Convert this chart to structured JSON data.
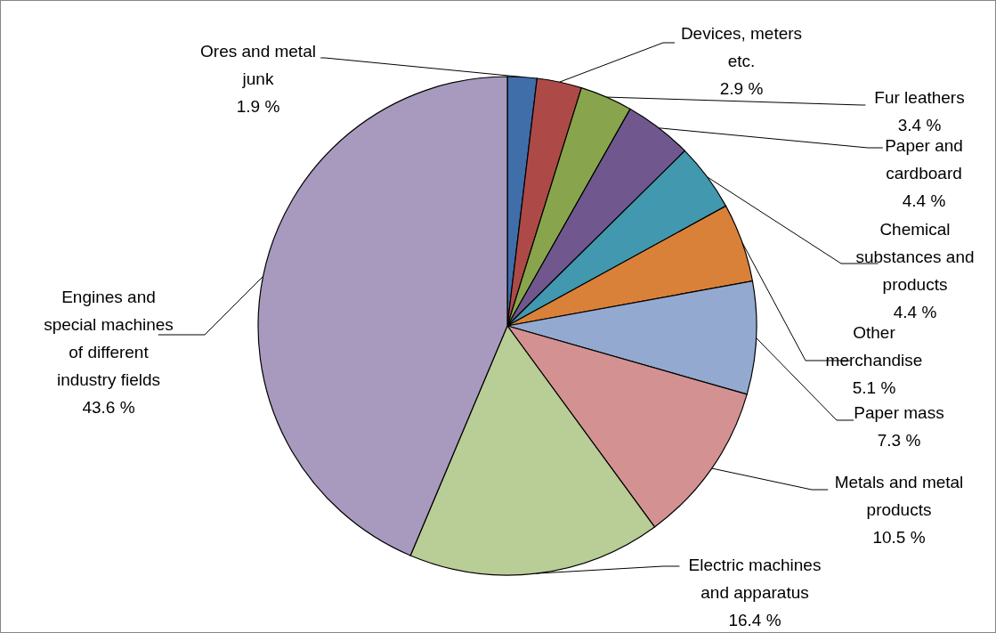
{
  "chart_data": {
    "type": "pie",
    "categories": [
      "Ores and metal junk",
      "Devices, meters etc.",
      "Fur leathers",
      "Paper and cardboard",
      "Chemical substances and products",
      "Other merchandise",
      "Paper mass",
      "Metals and metal products",
      "Electric machines and apparatus",
      "Engines and special machines of different industry fields"
    ],
    "values": [
      1.9,
      2.9,
      3.4,
      4.4,
      4.4,
      5.1,
      7.3,
      10.5,
      16.4,
      43.6
    ],
    "value_labels": [
      "1.9 %",
      "2.9 %",
      "3.4 %",
      "4.4 %",
      "4.4 %",
      "5.1 %",
      "7.3 %",
      "10.5 %",
      "16.4 %",
      "43.6 %"
    ],
    "colors": [
      "#3f6ea9",
      "#ad4a47",
      "#88a54d",
      "#70588f",
      "#4198af",
      "#da8139",
      "#93a9d0",
      "#d39291",
      "#b9cd96",
      "#a89abe"
    ]
  }
}
